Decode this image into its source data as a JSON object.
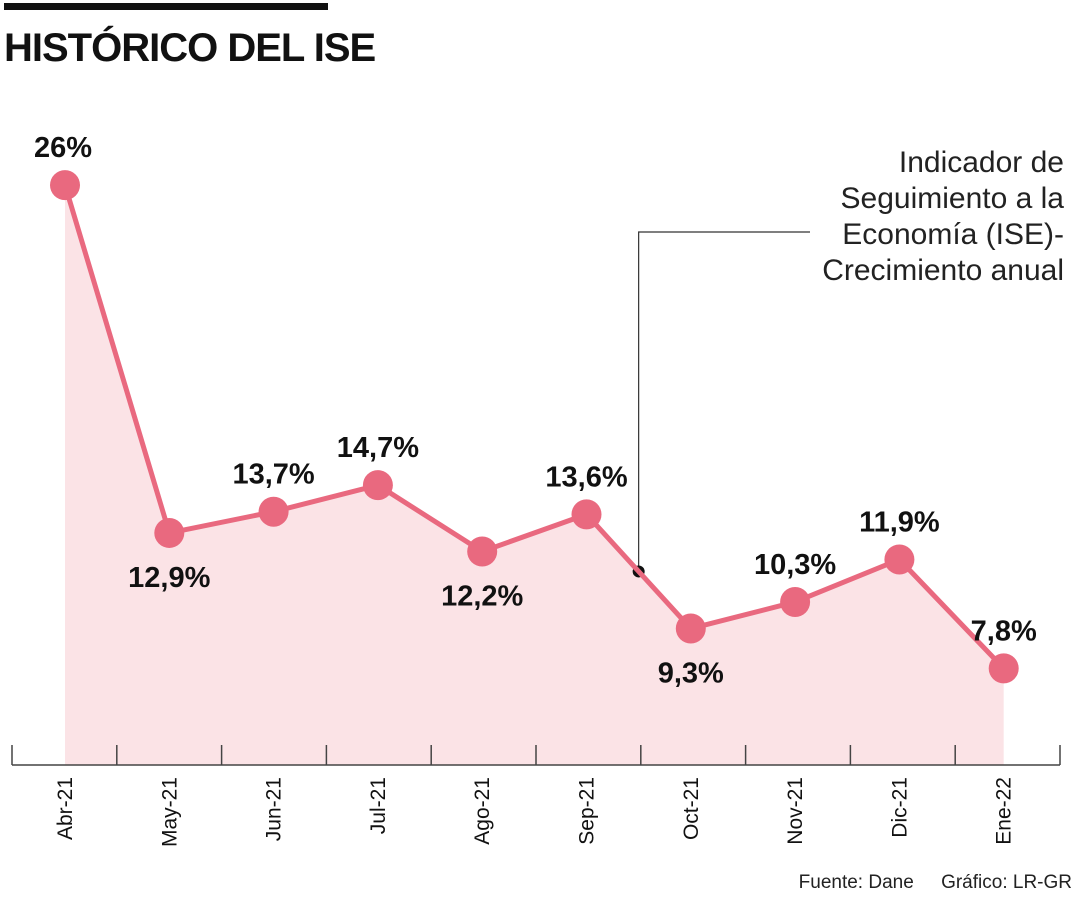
{
  "colors": {
    "line": "#e9697f",
    "fill": "#fbe3e6",
    "axis": "#444444",
    "text": "#111111"
  },
  "chart_data": {
    "type": "area",
    "title": "HISTÓRICO DEL ISE",
    "categories": [
      "Abr-21",
      "May-21",
      "Jun-21",
      "Jul-21",
      "Ago-21",
      "Sep-21",
      "Oct-21",
      "Nov-21",
      "Dic-21",
      "Ene-22"
    ],
    "series": [
      {
        "name": "Indicador de Seguimiento a la Economía (ISE)-Crecimiento anual",
        "values": [
          26,
          12.9,
          13.7,
          14.7,
          12.2,
          13.6,
          9.3,
          10.3,
          11.9,
          7.8
        ],
        "value_labels": [
          "26%",
          "12,9%",
          "13,7%",
          "14,7%",
          "12,2%",
          "13,6%",
          "9,3%",
          "10,3%",
          "11,9%",
          "7,8%"
        ],
        "label_position": [
          "above",
          "below",
          "above",
          "above",
          "below",
          "above",
          "below",
          "above",
          "above",
          "above"
        ]
      }
    ],
    "annotation": {
      "lines": [
        "Indicador de",
        "Seguimiento a la",
        "Economía (ISE)-",
        "Crecimiento anual"
      ],
      "points_between": [
        "Sep-21",
        "Oct-21"
      ]
    },
    "xlabel": "",
    "ylabel": "",
    "grid": false,
    "legend": "none"
  },
  "footer": {
    "source": "Fuente: Dane",
    "credit": "Gráfico: LR-GR"
  }
}
